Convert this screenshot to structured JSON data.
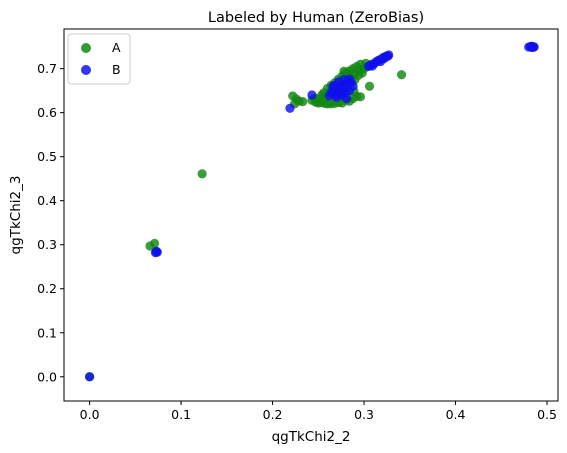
{
  "chart_data": {
    "type": "scatter",
    "title": "Labeled by Human (ZeroBias)",
    "xlabel": "qgTkChi2_2",
    "ylabel": "qgTkChi2_3",
    "xlim": [
      -0.028,
      0.512
    ],
    "ylim": [
      -0.055,
      0.79
    ],
    "xticks": [
      0.0,
      0.1,
      0.2,
      0.3,
      0.4,
      0.5
    ],
    "xtick_labels": [
      "0.0",
      "0.1",
      "0.2",
      "0.3",
      "0.4",
      "0.5"
    ],
    "yticks": [
      0.0,
      0.1,
      0.2,
      0.3,
      0.4,
      0.5,
      0.6,
      0.7
    ],
    "ytick_labels": [
      "0.0",
      "0.1",
      "0.2",
      "0.3",
      "0.4",
      "0.5",
      "0.6",
      "0.7"
    ],
    "grid": false,
    "legend_position": "top-left",
    "series": [
      {
        "name": "A",
        "color": "#118811",
        "points": [
          [
            0.0,
            0.0
          ],
          [
            0.066,
            0.297
          ],
          [
            0.071,
            0.303
          ],
          [
            0.073,
            0.285
          ],
          [
            0.123,
            0.461
          ],
          [
            0.222,
            0.638
          ],
          [
            0.226,
            0.631
          ],
          [
            0.224,
            0.62
          ],
          [
            0.229,
            0.626
          ],
          [
            0.233,
            0.625
          ],
          [
            0.243,
            0.628
          ],
          [
            0.247,
            0.624
          ],
          [
            0.25,
            0.622
          ],
          [
            0.253,
            0.623
          ],
          [
            0.257,
            0.621
          ],
          [
            0.26,
            0.62
          ],
          [
            0.264,
            0.62
          ],
          [
            0.268,
            0.621
          ],
          [
            0.272,
            0.623
          ],
          [
            0.276,
            0.622
          ],
          [
            0.28,
            0.628
          ],
          [
            0.284,
            0.626
          ],
          [
            0.288,
            0.632
          ],
          [
            0.292,
            0.637
          ],
          [
            0.296,
            0.636
          ],
          [
            0.306,
            0.66
          ],
          [
            0.341,
            0.686
          ],
          [
            0.25,
            0.632
          ],
          [
            0.254,
            0.64
          ],
          [
            0.258,
            0.635
          ],
          [
            0.262,
            0.646
          ],
          [
            0.266,
            0.64
          ],
          [
            0.27,
            0.652
          ],
          [
            0.274,
            0.647
          ],
          [
            0.278,
            0.66
          ],
          [
            0.282,
            0.655
          ],
          [
            0.286,
            0.668
          ],
          [
            0.29,
            0.675
          ],
          [
            0.294,
            0.685
          ],
          [
            0.298,
            0.69
          ],
          [
            0.3,
            0.7
          ],
          [
            0.304,
            0.705
          ],
          [
            0.308,
            0.71
          ],
          [
            0.26,
            0.655
          ],
          [
            0.264,
            0.662
          ],
          [
            0.268,
            0.668
          ],
          [
            0.272,
            0.676
          ],
          [
            0.276,
            0.683
          ],
          [
            0.28,
            0.69
          ],
          [
            0.284,
            0.695
          ],
          [
            0.288,
            0.7
          ],
          [
            0.292,
            0.705
          ],
          [
            0.296,
            0.71
          ],
          [
            0.28,
            0.665
          ],
          [
            0.286,
            0.678
          ],
          [
            0.276,
            0.66
          ],
          [
            0.283,
            0.684
          ],
          [
            0.278,
            0.694
          ],
          [
            0.271,
            0.665
          ],
          [
            0.266,
            0.652
          ],
          [
            0.256,
            0.645
          ],
          [
            0.246,
            0.633
          ],
          [
            0.295,
            0.695
          ],
          [
            0.302,
            0.712
          ],
          [
            0.29,
            0.69
          ],
          [
            0.285,
            0.674
          ],
          [
            0.289,
            0.648
          ]
        ]
      },
      {
        "name": "B",
        "color": "#1010ee",
        "points": [
          [
            0.0,
            0.0
          ],
          [
            0.072,
            0.282
          ],
          [
            0.073,
            0.285
          ],
          [
            0.074,
            0.283
          ],
          [
            0.219,
            0.61
          ],
          [
            0.243,
            0.64
          ],
          [
            0.262,
            0.638
          ],
          [
            0.264,
            0.645
          ],
          [
            0.266,
            0.652
          ],
          [
            0.268,
            0.641
          ],
          [
            0.27,
            0.648
          ],
          [
            0.272,
            0.656
          ],
          [
            0.274,
            0.663
          ],
          [
            0.276,
            0.65
          ],
          [
            0.278,
            0.657
          ],
          [
            0.28,
            0.665
          ],
          [
            0.282,
            0.672
          ],
          [
            0.284,
            0.676
          ],
          [
            0.286,
            0.668
          ],
          [
            0.288,
            0.66
          ],
          [
            0.268,
            0.662
          ],
          [
            0.272,
            0.67
          ],
          [
            0.276,
            0.64
          ],
          [
            0.28,
            0.645
          ],
          [
            0.284,
            0.65
          ],
          [
            0.281,
            0.632
          ],
          [
            0.27,
            0.635
          ],
          [
            0.278,
            0.675
          ],
          [
            0.274,
            0.642
          ],
          [
            0.266,
            0.66
          ],
          [
            0.305,
            0.705
          ],
          [
            0.307,
            0.708
          ],
          [
            0.309,
            0.706
          ],
          [
            0.311,
            0.711
          ],
          [
            0.313,
            0.715
          ],
          [
            0.315,
            0.718
          ],
          [
            0.317,
            0.72
          ],
          [
            0.319,
            0.722
          ],
          [
            0.321,
            0.725
          ],
          [
            0.323,
            0.727
          ],
          [
            0.325,
            0.729
          ],
          [
            0.327,
            0.731
          ],
          [
            0.318,
            0.716
          ],
          [
            0.322,
            0.723
          ],
          [
            0.326,
            0.728
          ],
          [
            0.48,
            0.749
          ],
          [
            0.482,
            0.75
          ],
          [
            0.484,
            0.748
          ],
          [
            0.486,
            0.749
          ],
          [
            0.483,
            0.751
          ],
          [
            0.485,
            0.75
          ]
        ]
      }
    ]
  }
}
